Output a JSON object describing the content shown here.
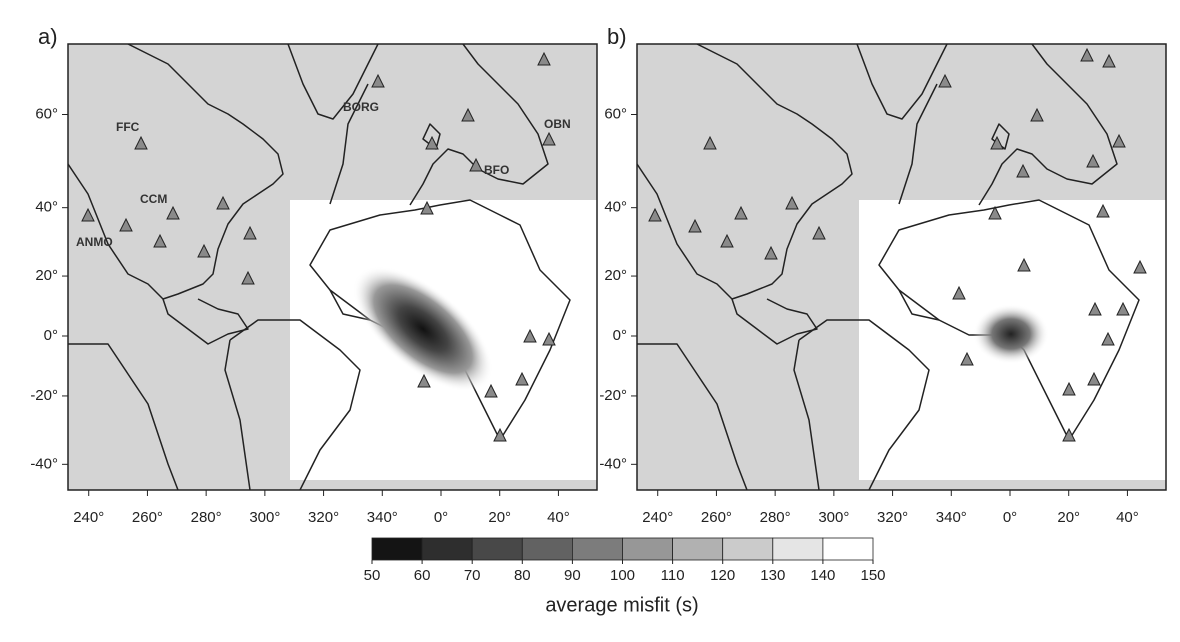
{
  "panels": [
    {
      "label": "a)",
      "stations": [
        "FFC",
        "CCM",
        "ANMO",
        "BORG",
        "OBN",
        "BFO"
      ]
    },
    {
      "label": "b)"
    }
  ],
  "map": {
    "lon_ticks": [
      {
        "value": -120,
        "label": "240°"
      },
      {
        "value": -100,
        "label": "260°"
      },
      {
        "value": -80,
        "label": "280°"
      },
      {
        "value": -60,
        "label": "300°"
      },
      {
        "value": -40,
        "label": "320°"
      },
      {
        "value": -20,
        "label": "340°"
      },
      {
        "value": 0,
        "label": "0°"
      },
      {
        "value": 20,
        "label": "20°"
      },
      {
        "value": 40,
        "label": "40°"
      }
    ],
    "lat_ticks": [
      {
        "value": 60,
        "label": "60°"
      },
      {
        "value": 40,
        "label": "40°"
      },
      {
        "value": 20,
        "label": "20°"
      },
      {
        "value": 0,
        "label": "0°"
      },
      {
        "value": -20,
        "label": "-20°"
      },
      {
        "value": -40,
        "label": "-40°"
      }
    ]
  },
  "colorbar": {
    "ticks": [
      50,
      60,
      70,
      80,
      90,
      100,
      110,
      120,
      130,
      140,
      150
    ],
    "label": "average misfit (s)"
  }
}
